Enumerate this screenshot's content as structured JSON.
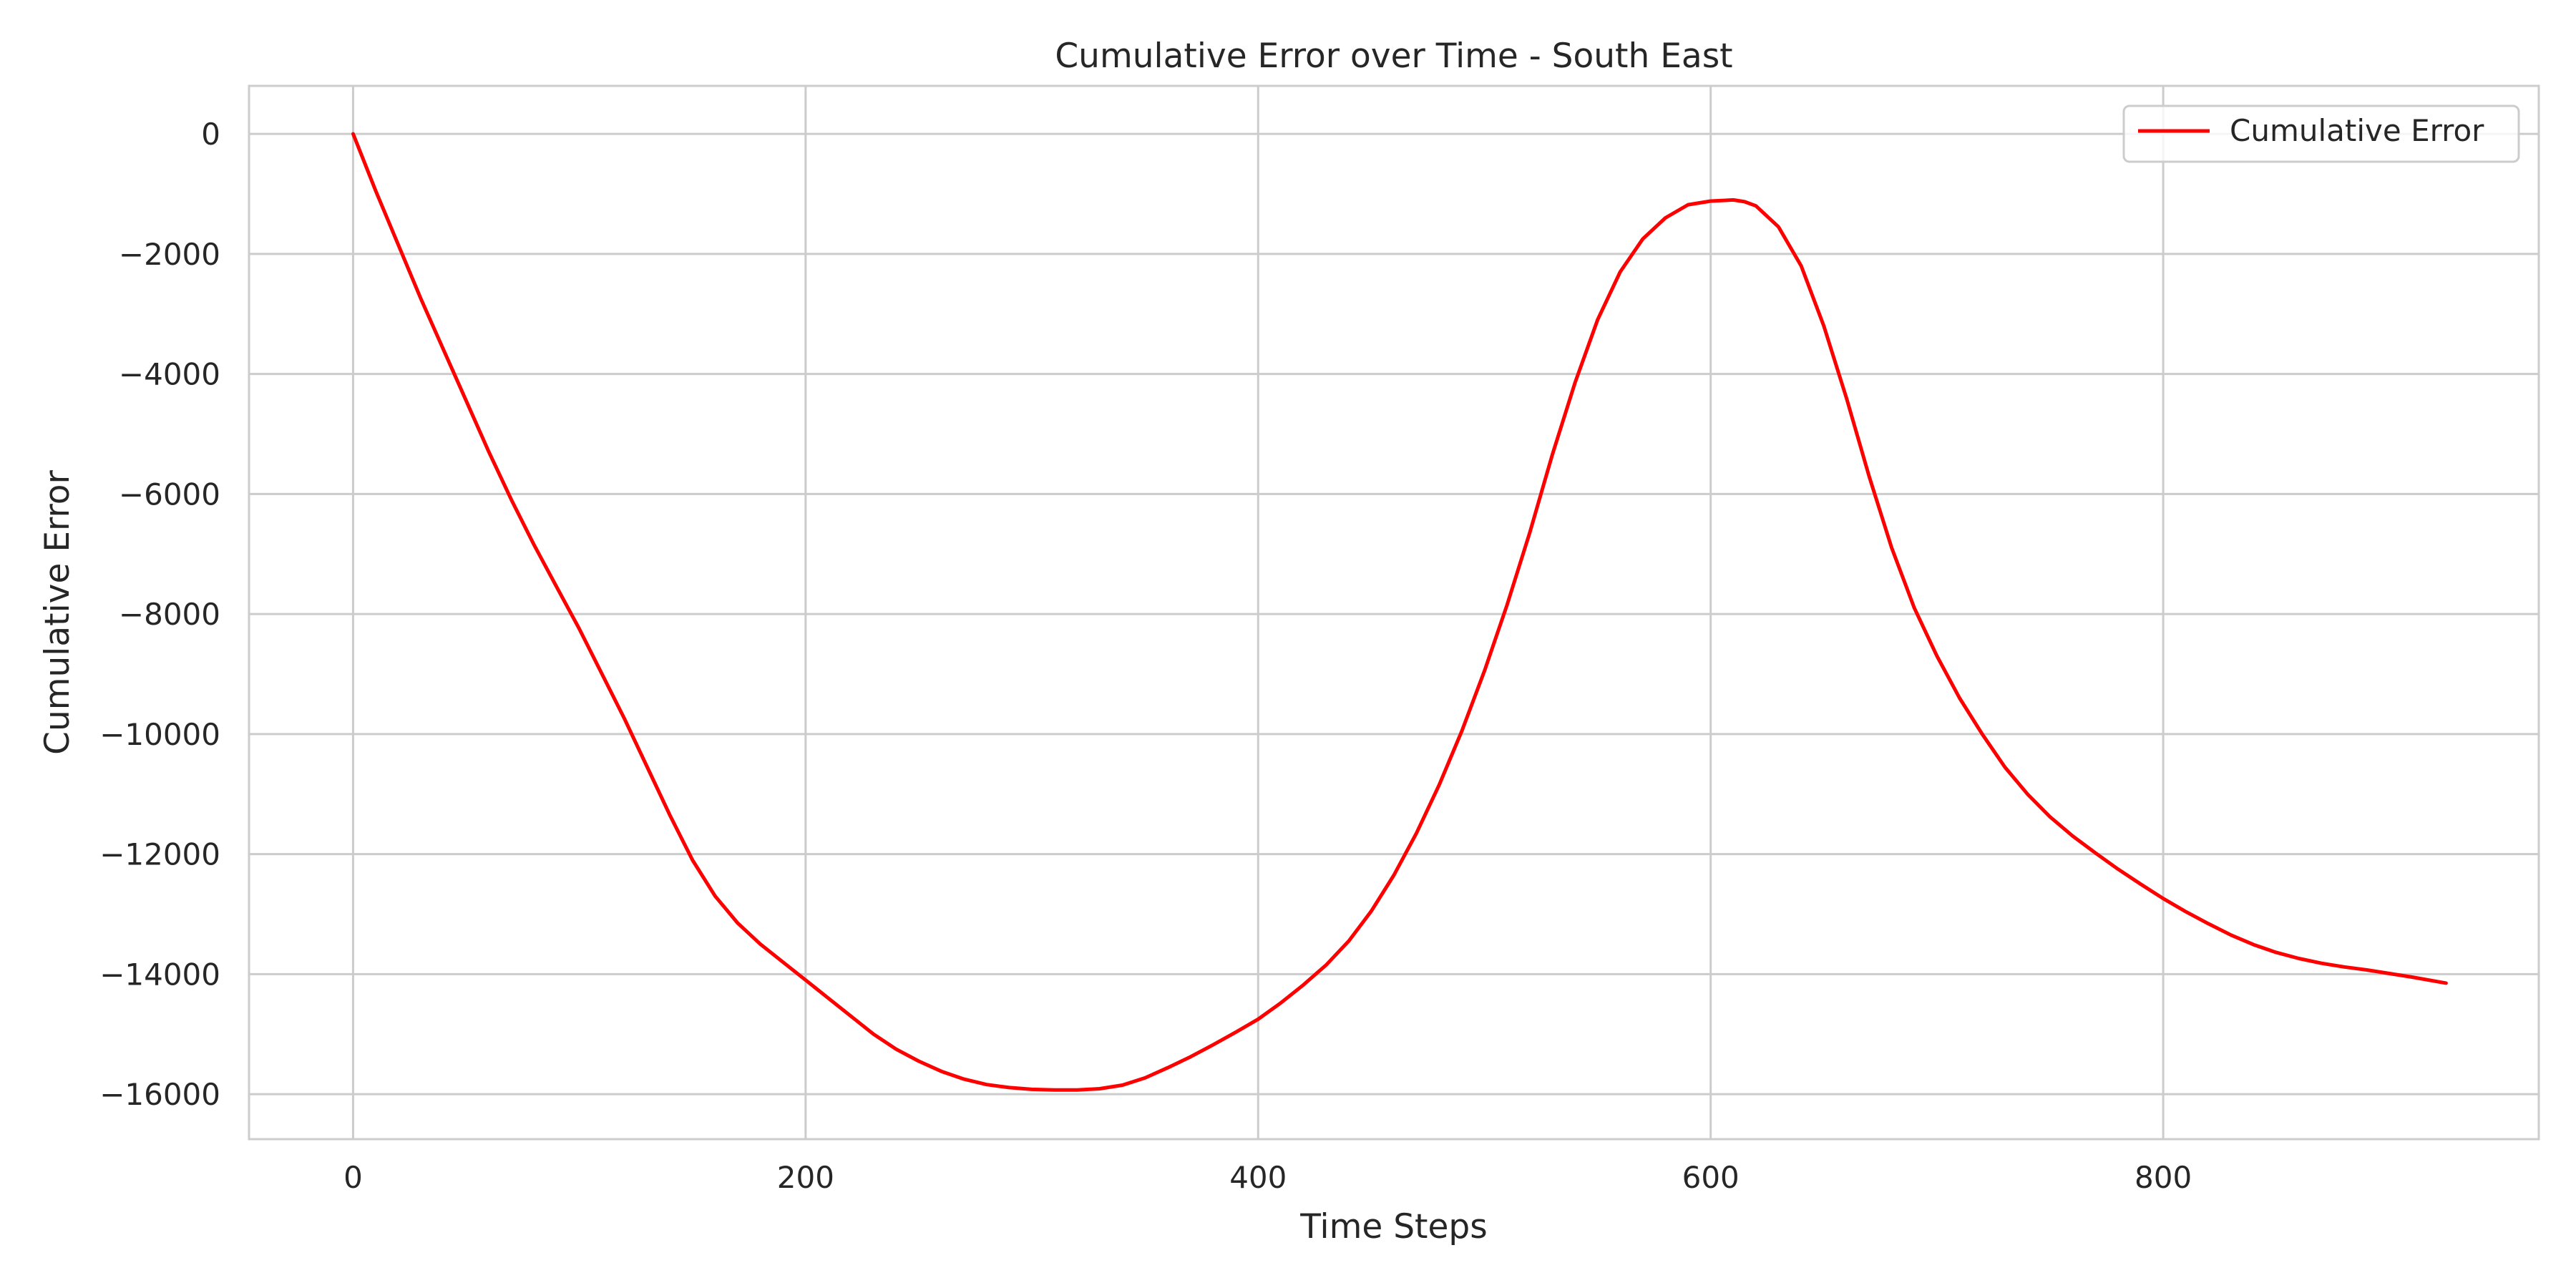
{
  "chart_data": {
    "type": "line",
    "title": "Cumulative Error over Time - South East",
    "xlabel": "Time Steps",
    "ylabel": "Cumulative Error",
    "xlim": [
      -46,
      966
    ],
    "ylim": [
      -16750,
      800
    ],
    "xticks": [
      0,
      200,
      400,
      600,
      800
    ],
    "yticks": [
      0,
      -2000,
      -4000,
      -6000,
      -8000,
      -10000,
      -12000,
      -14000,
      -16000
    ],
    "xtick_labels": [
      "0",
      "200",
      "400",
      "600",
      "800"
    ],
    "ytick_labels": [
      "0",
      "−2000",
      "−4000",
      "−6000",
      "−8000",
      "−10000",
      "−12000",
      "−14000",
      "−16000"
    ],
    "grid": true,
    "legend": {
      "position": "top-right",
      "entries": [
        "Cumulative Error"
      ]
    },
    "series": [
      {
        "name": "Cumulative Error",
        "color": "#ff0000",
        "x": [
          0,
          10,
          20,
          30,
          40,
          50,
          60,
          70,
          80,
          90,
          100,
          110,
          120,
          130,
          140,
          150,
          160,
          170,
          180,
          190,
          200,
          210,
          220,
          230,
          240,
          250,
          260,
          270,
          280,
          290,
          300,
          310,
          320,
          330,
          340,
          350,
          360,
          370,
          380,
          390,
          400,
          410,
          420,
          430,
          440,
          450,
          460,
          470,
          480,
          490,
          500,
          510,
          520,
          530,
          540,
          550,
          560,
          570,
          580,
          590,
          600,
          610,
          615,
          620,
          630,
          640,
          650,
          660,
          670,
          680,
          690,
          700,
          710,
          720,
          730,
          740,
          750,
          760,
          770,
          780,
          790,
          800,
          810,
          820,
          830,
          840,
          850,
          860,
          870,
          880,
          890,
          900,
          910,
          925
        ],
        "y": [
          0,
          -950,
          -1850,
          -2750,
          -3600,
          -4450,
          -5300,
          -6100,
          -6850,
          -7550,
          -8250,
          -9000,
          -9750,
          -10550,
          -11350,
          -12100,
          -12700,
          -13150,
          -13500,
          -13800,
          -14100,
          -14400,
          -14700,
          -15000,
          -15250,
          -15450,
          -15620,
          -15750,
          -15840,
          -15890,
          -15920,
          -15930,
          -15930,
          -15910,
          -15850,
          -15730,
          -15560,
          -15380,
          -15180,
          -14970,
          -14750,
          -14480,
          -14180,
          -13850,
          -13450,
          -12950,
          -12350,
          -11650,
          -10850,
          -9950,
          -8950,
          -7850,
          -6650,
          -5350,
          -4150,
          -3100,
          -2300,
          -1750,
          -1400,
          -1180,
          -1120,
          -1100,
          -1130,
          -1200,
          -1550,
          -2200,
          -3200,
          -4400,
          -5700,
          -6900,
          -7900,
          -8700,
          -9400,
          -10000,
          -10550,
          -11000,
          -11380,
          -11700,
          -11980,
          -12250,
          -12500,
          -12740,
          -12960,
          -13160,
          -13350,
          -13510,
          -13640,
          -13740,
          -13820,
          -13880,
          -13930,
          -13990,
          -14050,
          -14150
        ]
      }
    ]
  }
}
